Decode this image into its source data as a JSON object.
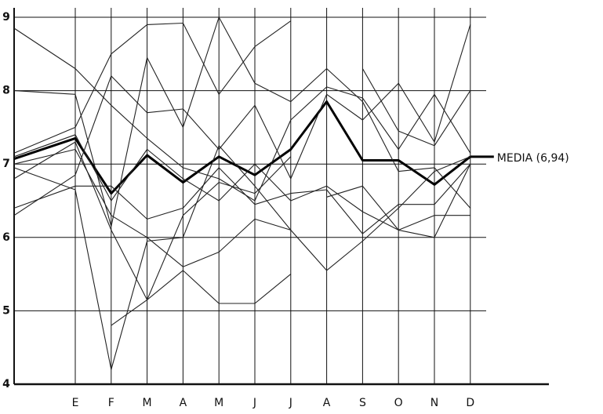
{
  "chart_data": {
    "type": "line",
    "categories": [
      null,
      "E",
      "F",
      "M",
      "A",
      "M",
      "J",
      "J",
      "A",
      "S",
      "O",
      "N",
      "D"
    ],
    "ylim": [
      4,
      9
    ],
    "yticks": [
      4,
      5,
      6,
      7,
      8,
      9
    ],
    "grid": true,
    "color": "#222222",
    "series": [
      {
        "name": "MEDIA (6,94)",
        "color": "#000000",
        "values": [
          7.07,
          7.35,
          6.6,
          7.12,
          6.75,
          7.1,
          6.85,
          7.2,
          7.85,
          7.05,
          7.05,
          6.72,
          7.1
        ]
      },
      {
        "values": [
          8.85,
          8.3,
          7.8,
          7.35,
          6.95,
          6.8,
          6.5,
          7.6,
          8.05,
          7.9,
          7.2,
          7.95,
          7.15
        ]
      },
      {
        "values": [
          8.0,
          7.95,
          6.15,
          8.45,
          7.5,
          9.0,
          8.1,
          7.85,
          8.3,
          7.85,
          6.9,
          6.95,
          6.4
        ]
      },
      {
        "values": [
          7.15,
          7.5,
          8.5,
          8.9,
          8.92,
          7.95,
          8.6,
          8.95,
          null,
          null,
          null,
          null,
          null
        ]
      },
      {
        "values": [
          6.3,
          6.85,
          8.2,
          7.7,
          7.75,
          7.2,
          7.8,
          6.8,
          7.95,
          7.6,
          8.1,
          7.3,
          8.9
        ]
      },
      {
        "values": [
          7.0,
          7.2,
          6.3,
          6.0,
          5.6,
          5.8,
          6.25,
          6.1,
          null,
          null,
          null,
          null,
          null
        ]
      },
      {
        "values": [
          6.4,
          6.7,
          6.7,
          6.25,
          6.4,
          6.95,
          6.45,
          6.6,
          6.65,
          6.05,
          6.45,
          6.45,
          7.0
        ]
      },
      {
        "values": [
          6.95,
          6.65,
          4.2,
          5.95,
          6.0,
          7.25,
          6.7,
          6.1,
          5.55,
          5.95,
          6.4,
          6.9,
          7.1
        ]
      },
      {
        "values": [
          6.8,
          7.3,
          6.1,
          5.15,
          5.55,
          5.1,
          5.1,
          5.5,
          null,
          null,
          null,
          null,
          null
        ]
      },
      {
        "values": [
          null,
          null,
          4.8,
          5.15,
          6.3,
          6.75,
          6.6,
          7.1,
          null,
          null,
          null,
          null,
          null
        ]
      },
      {
        "values": [
          7.1,
          7.4,
          6.5,
          7.2,
          6.8,
          6.5,
          7.0,
          6.5,
          6.7,
          6.35,
          6.1,
          6.0,
          7.0
        ]
      },
      {
        "values": [
          null,
          null,
          null,
          null,
          null,
          null,
          null,
          null,
          6.55,
          6.7,
          6.1,
          6.3,
          6.3
        ]
      },
      {
        "values": [
          null,
          null,
          null,
          null,
          null,
          null,
          null,
          null,
          null,
          8.3,
          7.45,
          7.25,
          8.0
        ]
      }
    ]
  }
}
